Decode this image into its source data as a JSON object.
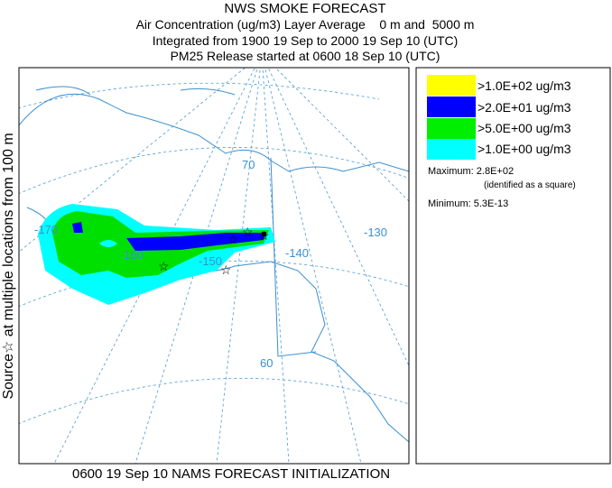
{
  "header": {
    "title": "NWS SMOKE FORECAST",
    "lines": [
      "Air Concentration (ug/m3) Layer Average    0 m and  5000 m",
      "Integrated from 1900 19 Sep to 2000 19 Sep 10 (UTC)",
      "PM25 Release started at 0600 18 Sep 10 (UTC)"
    ]
  },
  "side_label": "Source☆ at multiple locations from 100 m",
  "footer": "0600 19 Sep 10 NAMS FORECAST INITIALIZATION",
  "map": {
    "labels": [
      "70",
      "-130",
      "-140",
      "-150",
      "-160",
      "-170",
      "60"
    ]
  },
  "legend": {
    "entries": [
      ">1.0E+02 ug/m3",
      ">2.0E+01 ug/m3",
      ">5.0E+00 ug/m3",
      ">1.0E+00 ug/m3"
    ],
    "maximum": "Maximum: 2.8E+02",
    "maximum_note": "(identified as a square)",
    "minimum": "Minimum: 5.3E-13"
  }
}
